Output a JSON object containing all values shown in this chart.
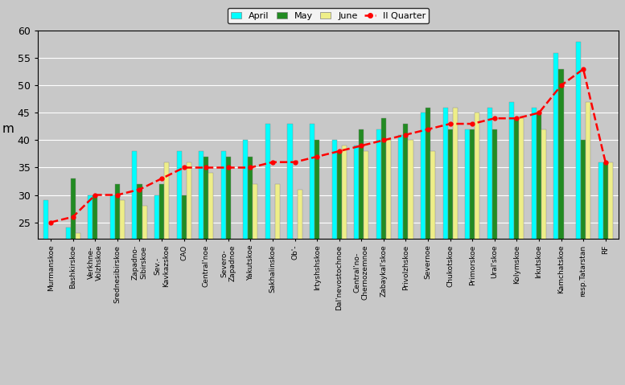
{
  "categories": [
    "Murmanskoe",
    "Bashkirskoe",
    "Verkhne-\nVolzhskoe",
    "Srednesibirskoe",
    "Zapadno-\nSibirskoe",
    "Sev.-\nKavkazskoe",
    "CAO",
    "Central'noe",
    "Severo-\nZapadnoe",
    "Yakutskoe",
    "Sakhalinskoe",
    "Ob'-",
    "Irtyshshskoe",
    "Dal'nevostochnoe",
    "Central'no-\nChernozemnoe",
    "Zabaykal'skoe",
    "Privolzhskoe",
    "Severnoe",
    "Chukotskoe",
    "Primorskoe",
    "Ural'skoe",
    "Kolymskoe",
    "Irkutskoe",
    "Kamchatskoe",
    "resp.Tatarstan",
    "RF"
  ],
  "april": [
    29,
    24,
    30,
    30,
    38,
    30,
    38,
    38,
    38,
    40,
    43,
    43,
    43,
    40,
    39,
    42,
    41,
    45,
    46,
    42,
    46,
    47,
    46,
    56,
    58,
    36
  ],
  "may": [
    null,
    33,
    30,
    32,
    32,
    32,
    30,
    37,
    37,
    37,
    null,
    null,
    40,
    38,
    42,
    44,
    43,
    46,
    42,
    42,
    42,
    44,
    45,
    53,
    40,
    36
  ],
  "june": [
    null,
    23,
    null,
    29,
    28,
    36,
    36,
    34,
    null,
    32,
    32,
    31,
    null,
    39,
    38,
    40,
    40,
    38,
    46,
    45,
    null,
    44,
    42,
    null,
    47,
    36
  ],
  "quarter": [
    25,
    26,
    30,
    30,
    31,
    33,
    35,
    35,
    35,
    35,
    36,
    36,
    37,
    38,
    39,
    40,
    41,
    42,
    43,
    43,
    44,
    44,
    45,
    50,
    53,
    36
  ],
  "bar_width": 0.22,
  "colors": {
    "april": "#00FFFF",
    "may": "#228B22",
    "june": "#EEEE88",
    "quarter": "#FF0000"
  },
  "ylim": [
    22,
    60
  ],
  "yticks": [
    25,
    30,
    35,
    40,
    45,
    50,
    55,
    60
  ],
  "ylabel": "m",
  "plot_bg": "#C8C8C8",
  "fig_bg": "#C8C8C8"
}
